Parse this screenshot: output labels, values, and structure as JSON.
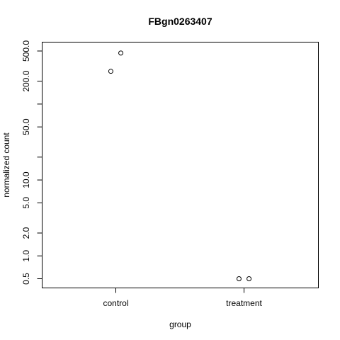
{
  "chart_data": {
    "type": "scatter",
    "title": "FBgn0263407",
    "xlabel": "group",
    "ylabel": "normalized count",
    "categories": [
      "control",
      "treatment"
    ],
    "y_scale": "log",
    "ylim": [
      0.4,
      640
    ],
    "y_ticks": [
      0.5,
      1,
      2,
      5,
      10,
      20,
      50,
      100,
      200,
      500
    ],
    "y_tick_labels": [
      "0.5",
      "1.0",
      "2.0",
      "5.0",
      "10.0",
      "",
      "50.0",
      "",
      "200.0",
      "500.0"
    ],
    "points": [
      {
        "category": "control",
        "jitter": -0.03,
        "y": 270
      },
      {
        "category": "control",
        "jitter": 0.03,
        "y": 470
      },
      {
        "category": "treatment",
        "jitter": -0.03,
        "y": 0.5
      },
      {
        "category": "treatment",
        "jitter": 0.03,
        "y": 0.5
      }
    ],
    "grid": false,
    "marker": "open-circle"
  }
}
